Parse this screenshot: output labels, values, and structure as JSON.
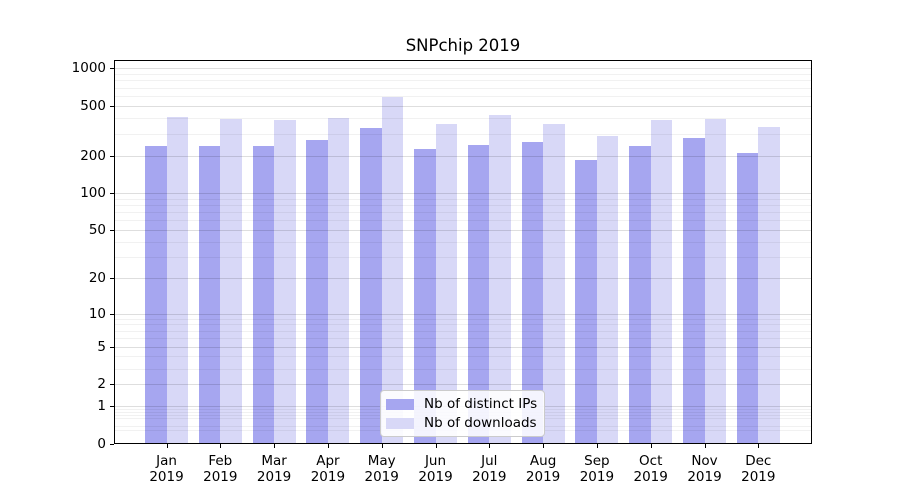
{
  "chart_data": {
    "type": "bar",
    "title": "SNPchip 2019",
    "year": "2019",
    "months": [
      "Jan",
      "Feb",
      "Mar",
      "Apr",
      "May",
      "Jun",
      "Jul",
      "Aug",
      "Sep",
      "Oct",
      "Nov",
      "Dec"
    ],
    "series": [
      {
        "name": "Nb of distinct IPs",
        "color": "#a6a6f0",
        "values": [
          240,
          240,
          240,
          265,
          335,
          226,
          243,
          259,
          184,
          237,
          274,
          208
        ]
      },
      {
        "name": "Nb of downloads",
        "color": "#d8d8f7",
        "values": [
          408,
          396,
          382,
          401,
          586,
          355,
          423,
          355,
          285,
          382,
          391,
          337
        ]
      }
    ],
    "y_scale": "log1p",
    "y_ticks": [
      1000,
      500,
      200,
      100,
      50,
      20,
      10,
      5,
      2,
      1,
      0
    ],
    "y_minor_ticks": [
      900,
      800,
      700,
      600,
      400,
      300,
      90,
      80,
      70,
      60,
      40,
      30,
      9,
      8,
      7,
      6,
      4,
      3,
      0.9,
      0.8,
      0.7,
      0.6,
      0.4,
      0.3
    ],
    "ylim": [
      0,
      1160
    ],
    "xlabel": "",
    "ylabel": "",
    "grid": true,
    "legend_position": "lower center"
  },
  "colors": {
    "background": "#ffffff",
    "axis": "#000000",
    "grid_major": "rgba(0,0,0,0.13)",
    "grid_minor": "rgba(0,0,0,0.055)",
    "legend_border": "#cbcbcb"
  }
}
